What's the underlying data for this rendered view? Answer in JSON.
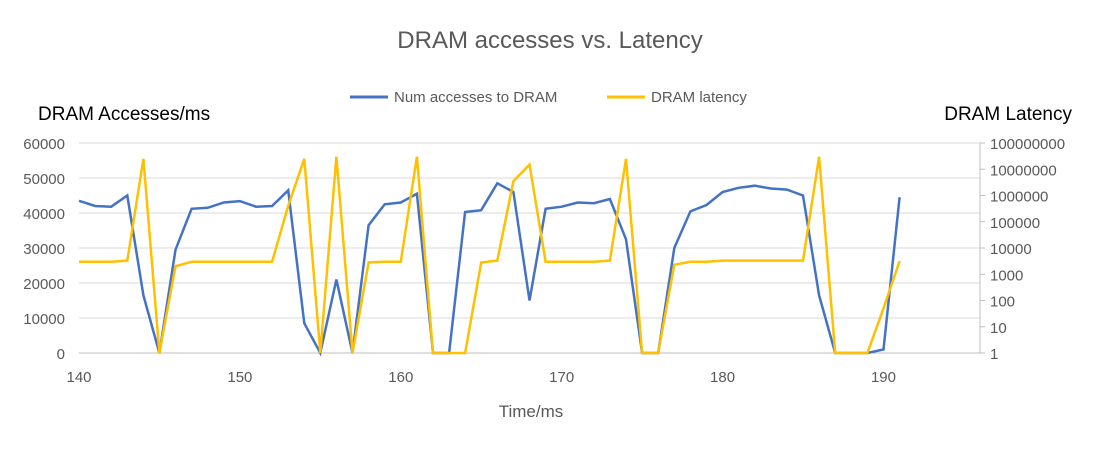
{
  "chart_data": {
    "type": "line",
    "title": "DRAM accesses vs. Latency",
    "xlabel": "Time/ms",
    "ylabel_left": "DRAM Accesses/ms",
    "ylabel_right": "DRAM Latency",
    "xlim": [
      140,
      196
    ],
    "xticks": [
      140,
      150,
      160,
      170,
      180,
      190
    ],
    "ylim_left": [
      0,
      60000
    ],
    "yticks_left": [
      0,
      10000,
      20000,
      30000,
      40000,
      50000,
      60000
    ],
    "ylim_right": [
      1,
      100000000
    ],
    "yscale_right": "log",
    "yticks_right": [
      1,
      10,
      100,
      1000,
      10000,
      100000,
      1000000,
      10000000,
      100000000
    ],
    "legend_position": "top",
    "grid": "horizontal",
    "colors": {
      "series1": "#4472c4",
      "series2": "#ffc000",
      "axis": "#bfbfbf",
      "grid": "#d9d9d9",
      "text": "#595959"
    },
    "series": [
      {
        "name": "Num accesses to DRAM",
        "axis": "left",
        "x": [
          140,
          141,
          142,
          143,
          144,
          145,
          146,
          147,
          148,
          149,
          150,
          151,
          152,
          153,
          154,
          155,
          156,
          157,
          158,
          159,
          160,
          161,
          162,
          163,
          164,
          165,
          166,
          167,
          168,
          169,
          170,
          171,
          172,
          173,
          174,
          175,
          176,
          177,
          178,
          179,
          180,
          181,
          182,
          183,
          184,
          185,
          186,
          187,
          188,
          189,
          190,
          191
        ],
        "values": [
          43500,
          42000,
          41800,
          45000,
          16500,
          0,
          29500,
          41200,
          41500,
          43000,
          43400,
          41800,
          42000,
          46500,
          8500,
          0,
          21000,
          0,
          36500,
          42500,
          43000,
          45500,
          0,
          0,
          40300,
          40800,
          48500,
          46000,
          15000,
          41200,
          41800,
          43000,
          42800,
          44000,
          32500,
          0,
          0,
          30000,
          40500,
          42300,
          46000,
          47200,
          47800,
          47000,
          46700,
          45000,
          16500,
          0,
          0,
          0,
          1000,
          44500
        ]
      },
      {
        "name": "DRAM latency",
        "axis": "right",
        "x": [
          140,
          141,
          142,
          143,
          144,
          145,
          146,
          147,
          148,
          149,
          150,
          151,
          152,
          153,
          154,
          155,
          156,
          157,
          158,
          159,
          160,
          161,
          162,
          163,
          164,
          165,
          166,
          167,
          168,
          169,
          170,
          171,
          172,
          173,
          174,
          175,
          176,
          177,
          178,
          179,
          180,
          181,
          182,
          183,
          184,
          185,
          186,
          187,
          188,
          189,
          190,
          191
        ],
        "values": [
          3000,
          3000,
          3000,
          3300,
          25000000,
          1,
          2000,
          3000,
          3000,
          3000,
          3000,
          3000,
          3000,
          400000,
          25000000,
          1,
          30000000,
          1,
          2800,
          3000,
          3000,
          30000000,
          1,
          1,
          1,
          2800,
          3300,
          3500000,
          15000000,
          3000,
          3000,
          3000,
          3000,
          3300,
          25000000,
          1,
          1,
          2300,
          3000,
          3000,
          3300,
          3300,
          3300,
          3300,
          3300,
          3300,
          30000000,
          1,
          1,
          1,
          50,
          3200
        ]
      }
    ]
  }
}
